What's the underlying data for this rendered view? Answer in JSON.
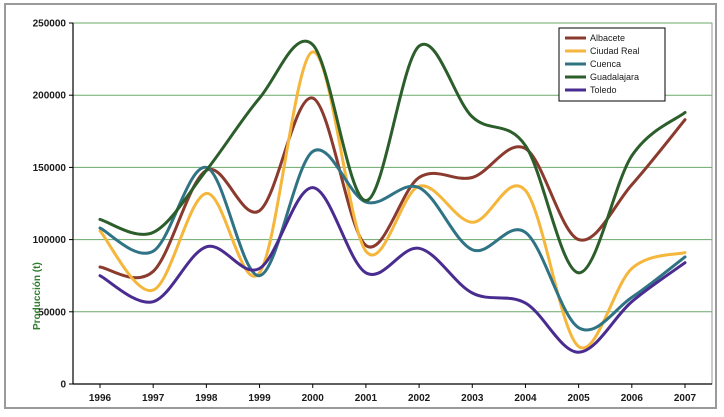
{
  "chart_data": {
    "type": "line",
    "title": "",
    "xlabel": "",
    "ylabel": "Producción (t)",
    "x": [
      "1996",
      "1997",
      "1998",
      "1999",
      "2000",
      "2001",
      "2002",
      "2003",
      "2004",
      "2005",
      "2006",
      "2007"
    ],
    "ylim": [
      0,
      250000
    ],
    "yticks": [
      0,
      50000,
      100000,
      150000,
      200000,
      250000
    ],
    "ytick_labels": [
      "0",
      "50000",
      "100000",
      "150000",
      "200000",
      "250000"
    ],
    "grid": true,
    "legend_position": "top-right",
    "series": [
      {
        "name": "Albacete",
        "color": "#8b3a2e",
        "values": [
          81000,
          78000,
          148000,
          120000,
          198000,
          96000,
          143000,
          143000,
          163000,
          100000,
          138000,
          183000
        ]
      },
      {
        "name": "Ciudad Real",
        "color": "#f5b63c",
        "values": [
          106000,
          65000,
          132000,
          77000,
          230000,
          92000,
          137000,
          112000,
          134000,
          26000,
          80000,
          91000
        ]
      },
      {
        "name": "Cuenca",
        "color": "#2f7385",
        "values": [
          108000,
          92000,
          150000,
          75000,
          161000,
          126000,
          136000,
          93000,
          105000,
          39000,
          60000,
          88000
        ]
      },
      {
        "name": "Guadalajara",
        "color": "#2b5e2b",
        "values": [
          114000,
          105000,
          148000,
          198000,
          235000,
          127000,
          234000,
          185000,
          165000,
          77000,
          158000,
          188000
        ]
      },
      {
        "name": "Toledo",
        "color": "#4a2c91",
        "values": [
          75000,
          57000,
          95000,
          80000,
          136000,
          77000,
          94000,
          63000,
          56000,
          22000,
          57000,
          84000
        ]
      }
    ]
  }
}
